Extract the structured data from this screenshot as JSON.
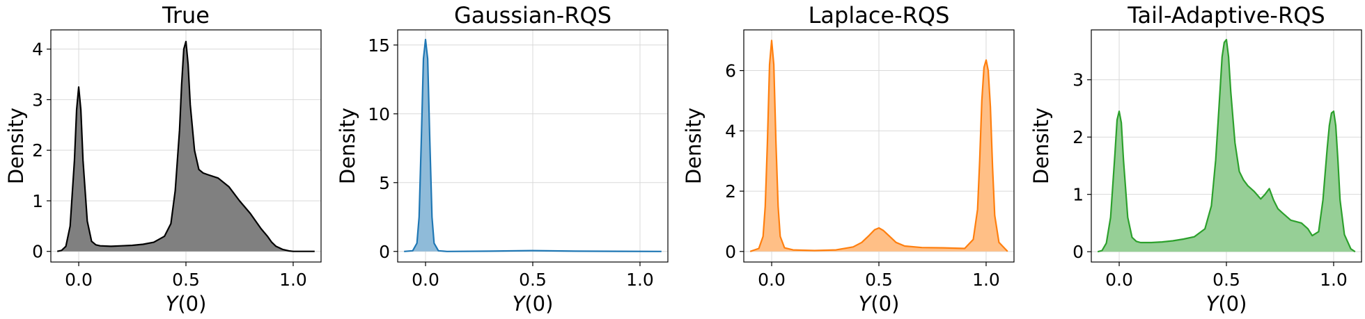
{
  "chart_data": [
    {
      "type": "area",
      "title": "True",
      "xlabel": "Y(0)",
      "ylabel": "Density",
      "xlim": [
        -0.13,
        1.13
      ],
      "ylim": [
        -0.21,
        4.38
      ],
      "xticks": [
        "0.0",
        "0.5",
        "1.0"
      ],
      "yticks": [
        "0",
        "1",
        "2",
        "3",
        "4"
      ],
      "grid": true,
      "color": "#000000",
      "fill": "#808080",
      "x": [
        -0.1,
        -0.08,
        -0.06,
        -0.04,
        -0.02,
        -0.01,
        0.0,
        0.01,
        0.02,
        0.04,
        0.06,
        0.08,
        0.1,
        0.15,
        0.2,
        0.25,
        0.3,
        0.35,
        0.4,
        0.43,
        0.45,
        0.47,
        0.48,
        0.49,
        0.5,
        0.51,
        0.52,
        0.54,
        0.56,
        0.58,
        0.6,
        0.65,
        0.7,
        0.75,
        0.8,
        0.85,
        0.88,
        0.9,
        0.92,
        0.95,
        0.98,
        1.0,
        1.05,
        1.1
      ],
      "y": [
        0.0,
        0.02,
        0.1,
        0.5,
        1.8,
        2.8,
        3.25,
        2.8,
        1.8,
        0.6,
        0.2,
        0.13,
        0.11,
        0.1,
        0.11,
        0.12,
        0.14,
        0.18,
        0.3,
        0.55,
        1.2,
        2.4,
        3.3,
        4.0,
        4.15,
        3.7,
        2.9,
        2.0,
        1.62,
        1.55,
        1.52,
        1.45,
        1.28,
        1.0,
        0.75,
        0.45,
        0.3,
        0.18,
        0.1,
        0.04,
        0.01,
        0.0,
        0.0,
        0.0
      ]
    },
    {
      "type": "area",
      "title": "Gaussian-RQS",
      "xlabel": "Y(0)",
      "ylabel": "Density",
      "xlim": [
        -0.13,
        1.13
      ],
      "ylim": [
        -0.77,
        16.1
      ],
      "xticks": [
        "0.0",
        "0.5",
        "1.0"
      ],
      "yticks": [
        "0",
        "5",
        "10",
        "15"
      ],
      "grid": true,
      "color": "#1f77b4",
      "fill": "#8fbbd9",
      "x": [
        -0.1,
        -0.06,
        -0.04,
        -0.03,
        -0.02,
        -0.01,
        0.0,
        0.01,
        0.02,
        0.03,
        0.04,
        0.06,
        0.1,
        0.3,
        0.5,
        0.7,
        0.9,
        1.1
      ],
      "y": [
        0.0,
        0.05,
        0.6,
        2.5,
        8.0,
        14.0,
        15.4,
        14.0,
        8.0,
        2.5,
        0.6,
        0.05,
        0.0,
        0.02,
        0.06,
        0.02,
        0.01,
        0.0
      ]
    },
    {
      "type": "area",
      "title": "Laplace-RQS",
      "xlabel": "Y(0)",
      "ylabel": "Density",
      "xlim": [
        -0.13,
        1.13
      ],
      "ylim": [
        -0.35,
        7.35
      ],
      "xticks": [
        "0.0",
        "0.5",
        "1.0"
      ],
      "yticks": [
        "0",
        "2",
        "4",
        "6"
      ],
      "grid": true,
      "color": "#ff7f0e",
      "fill": "#ffbf86",
      "x": [
        -0.1,
        -0.06,
        -0.04,
        -0.03,
        -0.02,
        -0.01,
        0.0,
        0.01,
        0.02,
        0.03,
        0.04,
        0.06,
        0.1,
        0.2,
        0.3,
        0.38,
        0.42,
        0.45,
        0.48,
        0.5,
        0.52,
        0.55,
        0.58,
        0.62,
        0.7,
        0.8,
        0.9,
        0.94,
        0.96,
        0.97,
        0.98,
        0.99,
        1.0,
        1.01,
        1.02,
        1.03,
        1.04,
        1.06,
        1.1
      ],
      "y": [
        0.0,
        0.1,
        0.5,
        1.5,
        3.6,
        6.2,
        7.0,
        6.2,
        3.6,
        1.5,
        0.5,
        0.12,
        0.05,
        0.03,
        0.05,
        0.15,
        0.3,
        0.5,
        0.72,
        0.78,
        0.7,
        0.5,
        0.3,
        0.18,
        0.13,
        0.12,
        0.1,
        0.4,
        1.4,
        3.0,
        5.0,
        6.1,
        6.35,
        6.0,
        4.8,
        2.8,
        1.2,
        0.3,
        0.0
      ]
    },
    {
      "type": "area",
      "title": "Tail-Adaptive-RQS",
      "xlabel": "Y(0)",
      "ylabel": "Density",
      "xlim": [
        -0.13,
        1.13
      ],
      "ylim": [
        -0.18,
        3.87
      ],
      "xticks": [
        "0.0",
        "0.5",
        "1.0"
      ],
      "yticks": [
        "0",
        "1",
        "2",
        "3"
      ],
      "grid": true,
      "color": "#2ca02c",
      "fill": "#96cf96",
      "x": [
        -0.1,
        -0.08,
        -0.06,
        -0.04,
        -0.02,
        -0.01,
        0.0,
        0.01,
        0.02,
        0.04,
        0.06,
        0.08,
        0.1,
        0.15,
        0.2,
        0.25,
        0.3,
        0.35,
        0.4,
        0.43,
        0.45,
        0.47,
        0.48,
        0.49,
        0.5,
        0.51,
        0.52,
        0.54,
        0.56,
        0.58,
        0.6,
        0.63,
        0.66,
        0.68,
        0.7,
        0.72,
        0.74,
        0.76,
        0.8,
        0.85,
        0.88,
        0.9,
        0.93,
        0.95,
        0.97,
        0.98,
        0.99,
        1.0,
        1.01,
        1.02,
        1.03,
        1.05,
        1.08,
        1.1
      ],
      "y": [
        0.0,
        0.02,
        0.15,
        0.6,
        1.7,
        2.3,
        2.45,
        2.25,
        1.6,
        0.6,
        0.25,
        0.18,
        0.16,
        0.16,
        0.17,
        0.19,
        0.22,
        0.26,
        0.4,
        0.8,
        1.6,
        2.8,
        3.4,
        3.65,
        3.7,
        3.4,
        2.8,
        1.9,
        1.4,
        1.25,
        1.15,
        1.05,
        0.92,
        1.0,
        1.1,
        0.9,
        0.75,
        0.68,
        0.55,
        0.5,
        0.4,
        0.28,
        0.35,
        0.9,
        1.8,
        2.2,
        2.42,
        2.45,
        2.2,
        1.6,
        0.9,
        0.3,
        0.05,
        0.0
      ]
    }
  ]
}
